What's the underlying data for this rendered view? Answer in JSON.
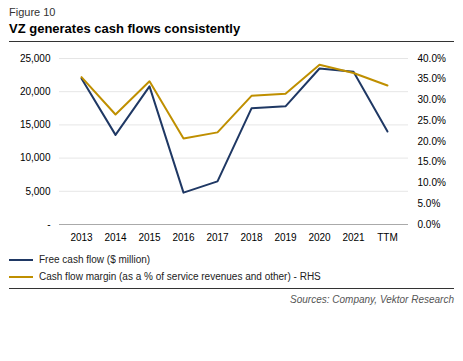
{
  "chart_data": {
    "type": "line",
    "subtitle": "Figure 10",
    "title": "VZ generates cash flows consistently",
    "annotations": [
      "Sources: Company, Vektor Research"
    ],
    "categories": [
      "2013",
      "2014",
      "2015",
      "2016",
      "2017",
      "2018",
      "2019",
      "2020",
      "2021",
      "TTM"
    ],
    "series": [
      {
        "name": "Free cash flow ($ million)",
        "color": "#1F3864",
        "values": [
          22000,
          13500,
          20800,
          4800,
          6500,
          17500,
          17800,
          23500,
          23000,
          14000
        ]
      },
      {
        "name": "Cash flow margin (as a % of service revenues and other) - RHS",
        "color": "#BF8F00",
        "axis": "y2",
        "values": [
          0.355,
          0.265,
          0.345,
          0.207,
          0.222,
          0.31,
          0.315,
          0.385,
          0.365,
          0.335
        ]
      }
    ],
    "ylim": [
      0,
      25000
    ],
    "yticks": [
      {
        "value": 0,
        "label": "-"
      },
      {
        "value": 5000,
        "label": "5,000"
      },
      {
        "value": 10000,
        "label": "10,000"
      },
      {
        "value": 15000,
        "label": "15,000"
      },
      {
        "value": 20000,
        "label": "20,000"
      },
      {
        "value": 25000,
        "label": "25,000"
      }
    ],
    "y2lim": [
      0,
      0.4
    ],
    "y2ticks": [
      {
        "value": 0.0,
        "label": "0.0%"
      },
      {
        "value": 0.05,
        "label": "5.0%"
      },
      {
        "value": 0.1,
        "label": "10.0%"
      },
      {
        "value": 0.15,
        "label": "15.0%"
      },
      {
        "value": 0.2,
        "label": "20.0%"
      },
      {
        "value": 0.25,
        "label": "25.0%"
      },
      {
        "value": 0.3,
        "label": "30.0%"
      },
      {
        "value": 0.35,
        "label": "35.0%"
      },
      {
        "value": 0.4,
        "label": "40.0%"
      }
    ],
    "grid": true,
    "legend": "bottom"
  }
}
